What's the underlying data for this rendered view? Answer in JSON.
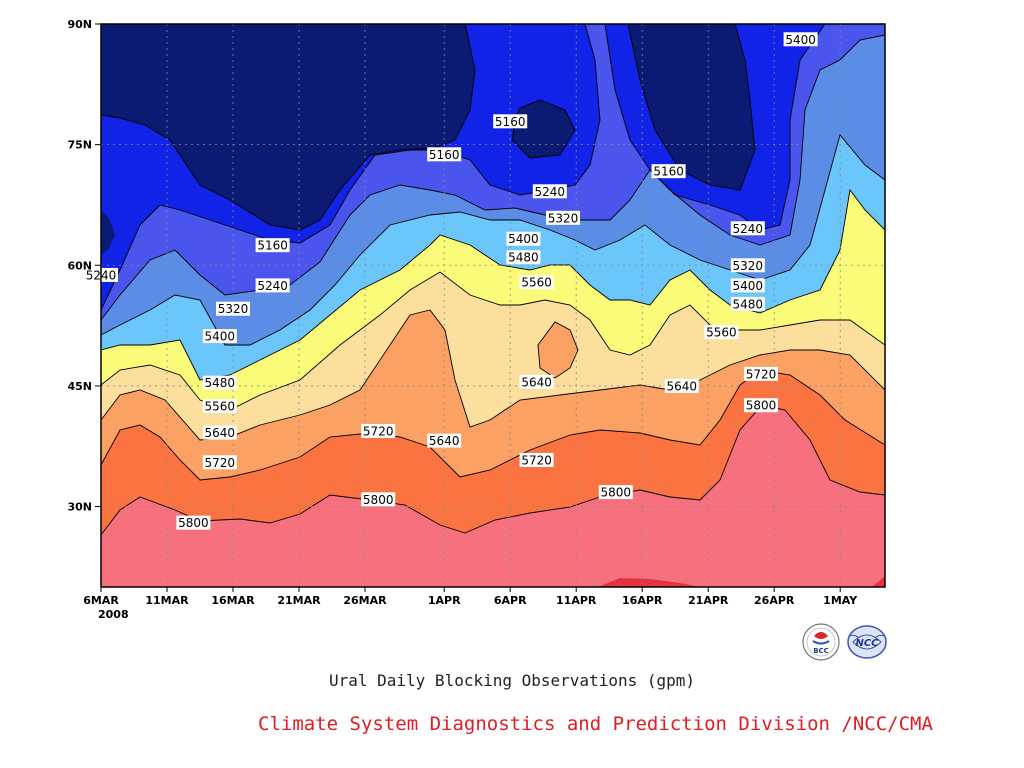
{
  "chart_data": {
    "type": "contour-filled",
    "title": "Ural Daily Blocking Observations (gpm)",
    "x_axis": {
      "ticks": [
        "6MAR",
        "11MAR",
        "16MAR",
        "21MAR",
        "26MAR",
        "1APR",
        "6APR",
        "11APR",
        "16APR",
        "21APR",
        "26APR",
        "1MAY"
      ],
      "year_label": "2008",
      "range": [
        "2008-03-06",
        "2008-05-04"
      ]
    },
    "y_axis": {
      "ticks": [
        "30N",
        "45N",
        "60N",
        "75N",
        "90N"
      ],
      "tick_values": [
        30,
        45,
        60,
        75,
        90
      ],
      "range": [
        20,
        90
      ]
    },
    "grid": true,
    "contour_levels": [
      5160,
      5240,
      5320,
      5400,
      5480,
      5560,
      5640,
      5720,
      5800
    ],
    "contour_labels": [
      {
        "text": "5160",
        "date": "2008-03-19",
        "lat": 62.5
      },
      {
        "text": "5160",
        "date": "2008-04-01",
        "lat": 73.8
      },
      {
        "text": "5160",
        "date": "2008-04-06",
        "lat": 77.9
      },
      {
        "text": "5160",
        "date": "2008-04-18",
        "lat": 71.7
      },
      {
        "text": "5240",
        "date": "2008-03-06",
        "lat": 58.8
      },
      {
        "text": "5240",
        "date": "2008-03-19",
        "lat": 57.5
      },
      {
        "text": "5240",
        "date": "2008-04-09",
        "lat": 69.2
      },
      {
        "text": "5240",
        "date": "2008-04-24",
        "lat": 64.6
      },
      {
        "text": "5320",
        "date": "2008-03-16",
        "lat": 54.6
      },
      {
        "text": "5320",
        "date": "2008-04-10",
        "lat": 65.9
      },
      {
        "text": "5320",
        "date": "2008-04-24",
        "lat": 60.0
      },
      {
        "text": "5400",
        "date": "2008-03-15",
        "lat": 51.2
      },
      {
        "text": "5400",
        "date": "2008-04-07",
        "lat": 63.3
      },
      {
        "text": "5400",
        "date": "2008-04-24",
        "lat": 57.5
      },
      {
        "text": "5400",
        "date": "2008-04-28",
        "lat": 88.1
      },
      {
        "text": "5480",
        "date": "2008-03-15",
        "lat": 45.4
      },
      {
        "text": "5480",
        "date": "2008-04-07",
        "lat": 61.0
      },
      {
        "text": "5480",
        "date": "2008-04-24",
        "lat": 55.2
      },
      {
        "text": "5560",
        "date": "2008-03-15",
        "lat": 42.5
      },
      {
        "text": "5560",
        "date": "2008-04-08",
        "lat": 57.9
      },
      {
        "text": "5560",
        "date": "2008-04-22",
        "lat": 51.7
      },
      {
        "text": "5640",
        "date": "2008-03-15",
        "lat": 39.2
      },
      {
        "text": "5640",
        "date": "2008-04-01",
        "lat": 38.2
      },
      {
        "text": "5640",
        "date": "2008-04-08",
        "lat": 45.5
      },
      {
        "text": "5640",
        "date": "2008-04-19",
        "lat": 45.0
      },
      {
        "text": "5720",
        "date": "2008-03-15",
        "lat": 35.5
      },
      {
        "text": "5720",
        "date": "2008-03-27",
        "lat": 39.4
      },
      {
        "text": "5720",
        "date": "2008-04-08",
        "lat": 35.8
      },
      {
        "text": "5720",
        "date": "2008-04-25",
        "lat": 46.5
      },
      {
        "text": "5800",
        "date": "2008-03-13",
        "lat": 28.0
      },
      {
        "text": "5800",
        "date": "2008-03-27",
        "lat": 30.9
      },
      {
        "text": "5800",
        "date": "2008-04-14",
        "lat": 31.8
      },
      {
        "text": "5800",
        "date": "2008-04-25",
        "lat": 42.6
      }
    ],
    "colors": {
      "lt5160": "#0b1a72",
      "5160_5240": "#1223e8",
      "5240_5320": "#4a55ee",
      "5320_5400": "#5b8de6",
      "5400_5480": "#6ac6fb",
      "5480_5560": "#fbfb7a",
      "5560_5640": "#fcdf9c",
      "5640_5720": "#fba164",
      "5720_5800": "#fb7341",
      "gt5800": "#f6707e",
      "gt5880": "#e4323e"
    }
  },
  "credit": {
    "text": "Climate System Diagnostics and Prediction Division /NCC/CMA",
    "color": "#e31b23"
  },
  "logos": [
    {
      "icon": "bcc-logo",
      "text": "BCC"
    },
    {
      "icon": "ncc-logo",
      "text": "NCC"
    }
  ]
}
